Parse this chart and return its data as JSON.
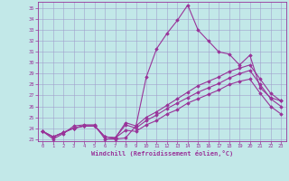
{
  "xlabel": "Windchill (Refroidissement éolien,°C)",
  "bg_color": "#c2e8e8",
  "line_color": "#993399",
  "grid_color": "#a0a0cc",
  "x_hours": [
    0,
    1,
    2,
    3,
    4,
    5,
    6,
    7,
    8,
    9,
    10,
    11,
    12,
    13,
    14,
    15,
    16,
    17,
    18,
    19,
    20,
    21,
    22,
    23
  ],
  "line1": [
    23.7,
    23.0,
    23.5,
    24.2,
    24.3,
    24.3,
    23.0,
    23.0,
    23.1,
    24.2,
    28.7,
    31.3,
    32.7,
    33.9,
    35.3,
    33.0,
    32.0,
    31.0,
    30.8,
    29.8,
    30.7,
    27.7,
    26.8,
    26.5
  ],
  "line2": [
    23.7,
    23.2,
    23.6,
    24.0,
    24.2,
    24.2,
    23.2,
    23.1,
    24.5,
    24.2,
    25.0,
    25.5,
    26.1,
    26.7,
    27.3,
    27.9,
    28.3,
    28.7,
    29.2,
    29.5,
    29.8,
    28.5,
    27.2,
    26.5
  ],
  "line3": [
    23.7,
    23.2,
    23.6,
    24.0,
    24.2,
    24.2,
    23.2,
    23.1,
    24.3,
    24.0,
    24.7,
    25.2,
    25.8,
    26.3,
    26.8,
    27.3,
    27.7,
    28.1,
    28.6,
    29.0,
    29.3,
    28.0,
    26.7,
    26.0
  ],
  "line4": [
    23.7,
    23.2,
    23.6,
    24.0,
    24.2,
    24.2,
    23.2,
    23.1,
    23.8,
    23.7,
    24.3,
    24.7,
    25.3,
    25.7,
    26.3,
    26.7,
    27.1,
    27.5,
    28.0,
    28.3,
    28.5,
    27.2,
    26.0,
    25.3
  ],
  "ylim": [
    22.8,
    35.6
  ],
  "yticks": [
    23,
    24,
    25,
    26,
    27,
    28,
    29,
    30,
    31,
    32,
    33,
    34,
    35
  ],
  "xticks": [
    0,
    1,
    2,
    3,
    4,
    5,
    6,
    7,
    8,
    9,
    10,
    11,
    12,
    13,
    14,
    15,
    16,
    17,
    18,
    19,
    20,
    21,
    22,
    23
  ]
}
